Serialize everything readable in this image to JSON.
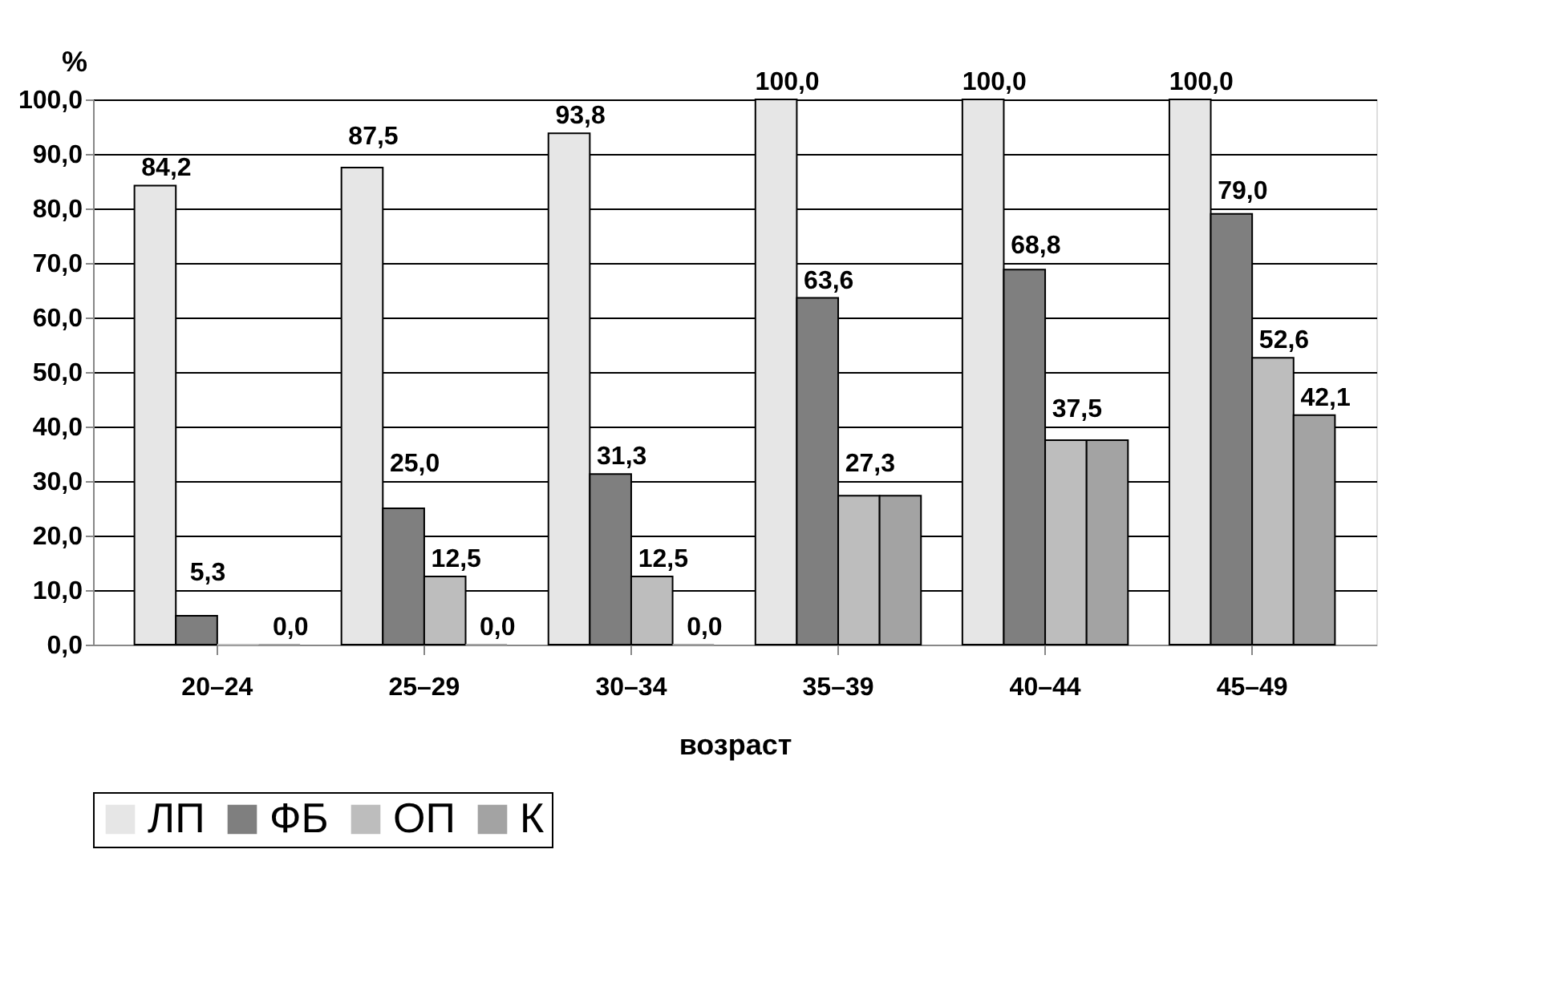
{
  "chart_data": {
    "type": "bar",
    "xlabel": "возраст",
    "ylabel": "%",
    "categories": [
      "20–24",
      "25–29",
      "30–34",
      "35–39",
      "40–44",
      "45–49"
    ],
    "series": [
      {
        "name": "ЛП",
        "color": "#e6e6e6",
        "values": [
          84.2,
          87.5,
          93.8,
          100.0,
          100.0,
          100.0
        ],
        "value_labels": [
          "84,2",
          "87,5",
          "93,8",
          "100,0",
          "100,0",
          "100,0"
        ]
      },
      {
        "name": "ФБ",
        "color": "#7f7f7f",
        "values": [
          5.3,
          25.0,
          31.3,
          63.6,
          68.8,
          79.0
        ],
        "value_labels": [
          "5,3",
          "25,0",
          "31,3",
          "63,6",
          "68,8",
          "79,0"
        ]
      },
      {
        "name": "ОП",
        "color": "#bdbdbd",
        "values": [
          0.0,
          12.5,
          12.5,
          27.3,
          37.5,
          52.6
        ],
        "value_labels": [
          null,
          "12,5",
          "12,5",
          "27,3",
          "37,5",
          "52,6"
        ]
      },
      {
        "name": "К",
        "color": "#a3a3a3",
        "values": [
          0.0,
          0.0,
          0.0,
          27.3,
          37.5,
          42.1
        ],
        "value_labels": [
          "0,0",
          "0,0",
          "0,0",
          null,
          null,
          "42,1"
        ]
      }
    ],
    "ylim": [
      0,
      100
    ],
    "yticks": [
      {
        "value": 0,
        "label": "0,0"
      },
      {
        "value": 10,
        "label": "10,0"
      },
      {
        "value": 20,
        "label": "20,0"
      },
      {
        "value": 30,
        "label": "30,0"
      },
      {
        "value": 40,
        "label": "40,0"
      },
      {
        "value": 50,
        "label": "50,0"
      },
      {
        "value": 60,
        "label": "60,0"
      },
      {
        "value": 70,
        "label": "70,0"
      },
      {
        "value": 80,
        "label": "80,0"
      },
      {
        "value": 90,
        "label": "90,0"
      },
      {
        "value": 100,
        "label": "100,0"
      }
    ],
    "grid": "y",
    "legend": "bottom"
  }
}
